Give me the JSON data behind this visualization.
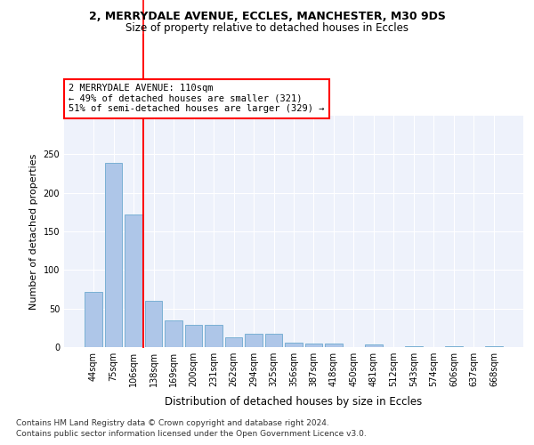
{
  "title1": "2, MERRYDALE AVENUE, ECCLES, MANCHESTER, M30 9DS",
  "title2": "Size of property relative to detached houses in Eccles",
  "xlabel": "Distribution of detached houses by size in Eccles",
  "ylabel": "Number of detached properties",
  "categories": [
    "44sqm",
    "75sqm",
    "106sqm",
    "138sqm",
    "169sqm",
    "200sqm",
    "231sqm",
    "262sqm",
    "294sqm",
    "325sqm",
    "356sqm",
    "387sqm",
    "418sqm",
    "450sqm",
    "481sqm",
    "512sqm",
    "543sqm",
    "574sqm",
    "606sqm",
    "637sqm",
    "668sqm"
  ],
  "values": [
    72,
    239,
    172,
    60,
    35,
    29,
    29,
    13,
    17,
    17,
    6,
    5,
    5,
    0,
    4,
    0,
    1,
    0,
    1,
    0,
    1
  ],
  "bar_color": "#aec6e8",
  "bar_edgecolor": "#7ab0d4",
  "annotation_line1": "2 MERRYDALE AVENUE: 110sqm",
  "annotation_line2": "← 49% of detached houses are smaller (321)",
  "annotation_line3": "51% of semi-detached houses are larger (329) →",
  "vline_bar_index": 2,
  "ylim": [
    0,
    300
  ],
  "yticks": [
    0,
    50,
    100,
    150,
    200,
    250
  ],
  "footer1": "Contains HM Land Registry data © Crown copyright and database right 2024.",
  "footer2": "Contains public sector information licensed under the Open Government Licence v3.0.",
  "background_color": "#eef2fb",
  "grid_color": "#ffffff",
  "fig_background": "#ffffff"
}
